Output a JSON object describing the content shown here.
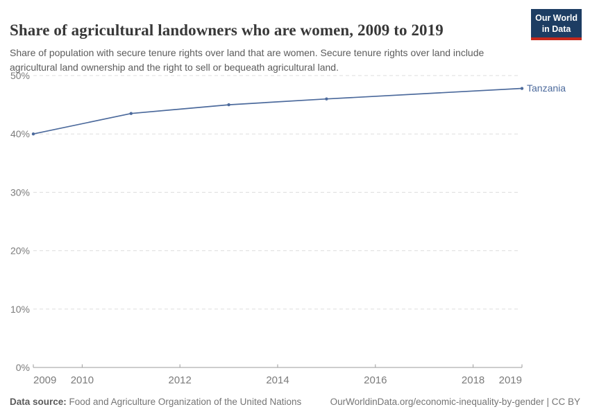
{
  "header": {
    "title": "Share of agricultural landowners who are women, 2009 to 2019",
    "subtitle": "Share of population with secure tenure rights over land that are women. Secure tenure rights over land include agricultural land ownership and the right to sell or bequeath agricultural land."
  },
  "logo": {
    "line1": "Our World",
    "line2": "in Data",
    "bg_color": "#1D3D63",
    "stripe_color": "#C5281C",
    "text_color": "#FFFFFF"
  },
  "footer": {
    "source_label": "Data source:",
    "source_text": " Food and Agriculture Organization of the United Nations",
    "link_text": "OurWorldinData.org/economic-inequality-by-gender | CC BY"
  },
  "colors": {
    "series_line": "#4C6A9C",
    "gridline": "#DDDDDD",
    "axis_line": "#9B9B9B",
    "tick_label": "#7B7B7B",
    "title_text": "#383838",
    "subtitle_text": "#5B5B5B"
  },
  "chart_data": {
    "type": "line",
    "title": "Share of agricultural landowners who are women, 2009 to 2019",
    "xlabel": "",
    "ylabel": "",
    "xlim": [
      2009,
      2019
    ],
    "ylim": [
      0,
      50
    ],
    "x_ticks": [
      2009,
      2010,
      2012,
      2014,
      2016,
      2018,
      2019
    ],
    "y_ticks": [
      0,
      10,
      20,
      30,
      40,
      50
    ],
    "y_unit": "%",
    "grid": "horizontal-dashed",
    "legend_position": "end-of-line-label",
    "series": [
      {
        "name": "Tanzania",
        "color": "#4C6A9C",
        "x": [
          2009,
          2011,
          2013,
          2015,
          2019
        ],
        "y": [
          40.0,
          43.5,
          45.0,
          46.0,
          47.8
        ]
      }
    ]
  }
}
